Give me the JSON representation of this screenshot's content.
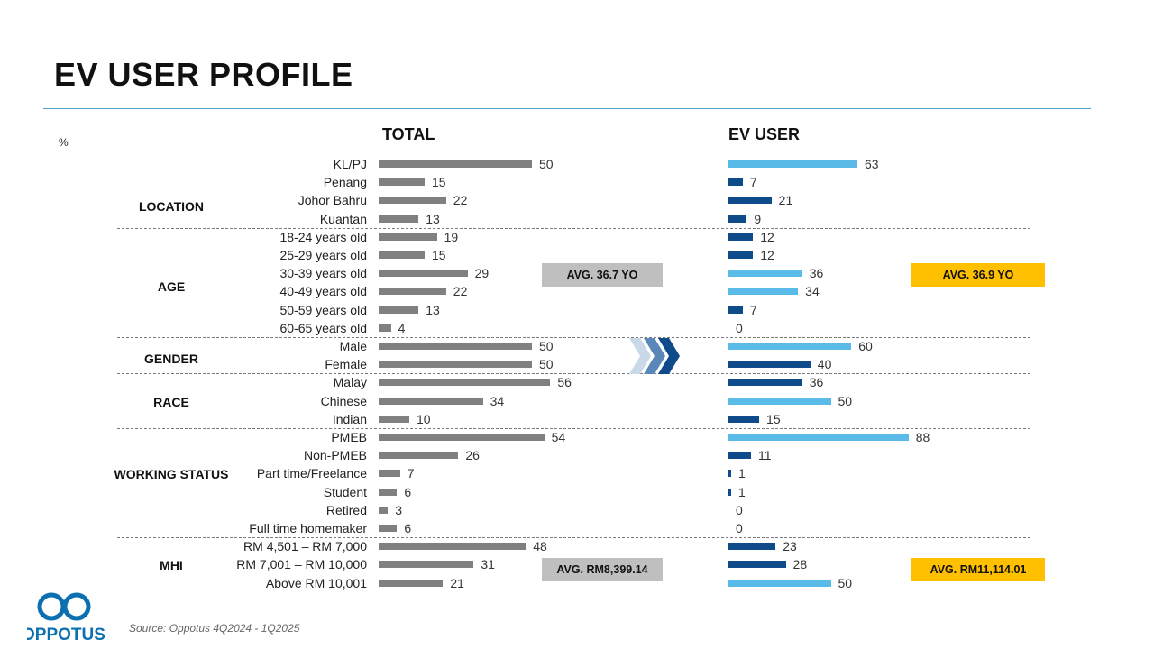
{
  "title": "EV USER PROFILE",
  "unit": "%",
  "source": "Source: Oppotus 4Q2024 - 1Q2025",
  "logo_text": "OPPOTUS",
  "colors": {
    "total_bar": "#808080",
    "ev_dark": "#0f4a8a",
    "ev_light": "#5bbbe8",
    "avg_grey": "#bfbfbf",
    "avg_gold": "#ffc000",
    "rule": "#4ea3c9"
  },
  "chart_data": {
    "type": "bar",
    "orientation": "horizontal",
    "series": [
      {
        "name": "TOTAL"
      },
      {
        "name": "EV USER"
      }
    ],
    "groups": [
      {
        "name": "LOCATION",
        "rows": [
          {
            "label": "KL/PJ",
            "total": 50,
            "ev": 63,
            "ev_highlight": true
          },
          {
            "label": "Penang",
            "total": 15,
            "ev": 7,
            "ev_highlight": false
          },
          {
            "label": "Johor Bahru",
            "total": 22,
            "ev": 21,
            "ev_highlight": false
          },
          {
            "label": "Kuantan",
            "total": 13,
            "ev": 9,
            "ev_highlight": false
          }
        ]
      },
      {
        "name": "AGE",
        "rows": [
          {
            "label": "18-24 years old",
            "total": 19,
            "ev": 12,
            "ev_highlight": false
          },
          {
            "label": "25-29 years old",
            "total": 15,
            "ev": 12,
            "ev_highlight": false
          },
          {
            "label": "30-39 years old",
            "total": 29,
            "ev": 36,
            "ev_highlight": true
          },
          {
            "label": "40-49 years old",
            "total": 22,
            "ev": 34,
            "ev_highlight": true
          },
          {
            "label": "50-59 years old",
            "total": 13,
            "ev": 7,
            "ev_highlight": false
          },
          {
            "label": "60-65 years old",
            "total": 4,
            "ev": 0,
            "ev_highlight": false
          }
        ]
      },
      {
        "name": "GENDER",
        "rows": [
          {
            "label": "Male",
            "total": 50,
            "ev": 60,
            "ev_highlight": true
          },
          {
            "label": "Female",
            "total": 50,
            "ev": 40,
            "ev_highlight": false
          }
        ]
      },
      {
        "name": "RACE",
        "rows": [
          {
            "label": "Malay",
            "total": 56,
            "ev": 36,
            "ev_highlight": false
          },
          {
            "label": "Chinese",
            "total": 34,
            "ev": 50,
            "ev_highlight": true
          },
          {
            "label": "Indian",
            "total": 10,
            "ev": 15,
            "ev_highlight": false
          }
        ]
      },
      {
        "name": "WORKING STATUS",
        "rows": [
          {
            "label": "PMEB",
            "total": 54,
            "ev": 88,
            "ev_highlight": true
          },
          {
            "label": "Non-PMEB",
            "total": 26,
            "ev": 11,
            "ev_highlight": false
          },
          {
            "label": "Part time/Freelance",
            "total": 7,
            "ev": 1,
            "ev_highlight": false
          },
          {
            "label": "Student",
            "total": 6,
            "ev": 1,
            "ev_highlight": false
          },
          {
            "label": "Retired",
            "total": 3,
            "ev": 0,
            "ev_highlight": false
          },
          {
            "label": "Full time homemaker",
            "total": 6,
            "ev": 0,
            "ev_highlight": false
          }
        ]
      },
      {
        "name": "MHI",
        "rows": [
          {
            "label": "RM 4,501 – RM 7,000",
            "total": 48,
            "ev": 23,
            "ev_highlight": false
          },
          {
            "label": "RM 7,001 – RM 10,000",
            "total": 31,
            "ev": 28,
            "ev_highlight": false
          },
          {
            "label": "Above RM 10,001",
            "total": 21,
            "ev": 50,
            "ev_highlight": true
          }
        ]
      }
    ],
    "averages": {
      "age_total": "AVG. 36.7 YO",
      "age_ev": "AVG. 36.9 YO",
      "mhi_total": "AVG. RM8,399.14",
      "mhi_ev": "AVG. RM11,114.01"
    }
  }
}
